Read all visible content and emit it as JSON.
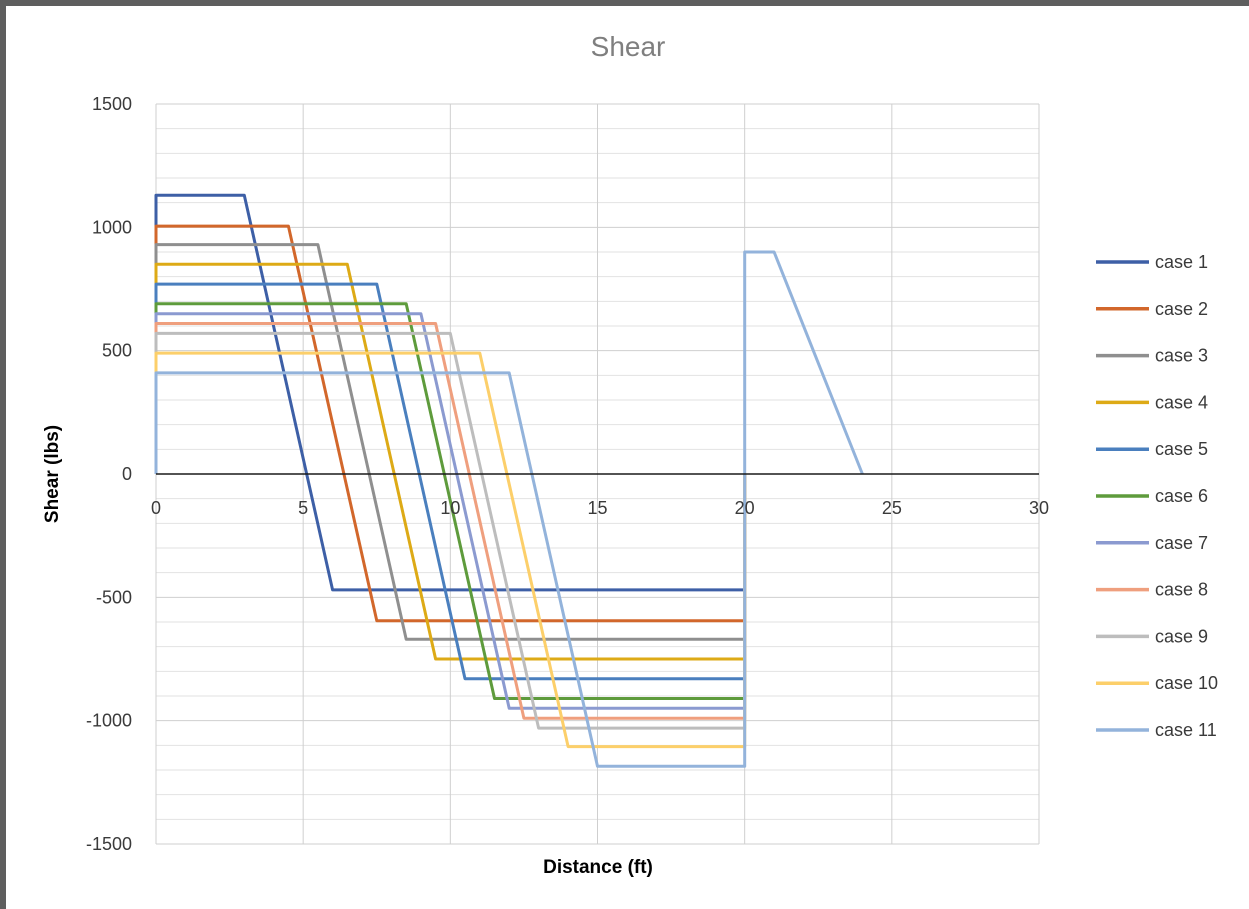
{
  "chart_data": {
    "type": "line",
    "title": "Shear",
    "xlabel": "Distance (ft)",
    "ylabel": "Shear (lbs)",
    "xlim": [
      0,
      30
    ],
    "ylim": [
      -1500,
      1500
    ],
    "x_ticks": [
      "0",
      "5",
      "10",
      "15",
      "20",
      "25",
      "30"
    ],
    "y_ticks": [
      "1500",
      "1000",
      "500",
      "0",
      "-500",
      "-1000",
      "-1500"
    ],
    "grid": true,
    "legend_position": "right",
    "series": [
      {
        "name": "case 1",
        "color": "#3d5fa6",
        "x": [
          0,
          0,
          3,
          6,
          20,
          20
        ],
        "y": [
          0,
          1130,
          1130,
          -470,
          -470,
          0
        ]
      },
      {
        "name": "case 2",
        "color": "#d2672b",
        "x": [
          0,
          0,
          4.5,
          7.5,
          20,
          20
        ],
        "y": [
          0,
          1005,
          1005,
          -595,
          -595,
          0
        ]
      },
      {
        "name": "case 3",
        "color": "#8f8f8f",
        "x": [
          0,
          0,
          5.5,
          8.5,
          20,
          20
        ],
        "y": [
          0,
          930,
          930,
          -670,
          -670,
          0
        ]
      },
      {
        "name": "case 4",
        "color": "#ddaa16",
        "x": [
          0,
          0,
          6.5,
          9.5,
          20,
          20
        ],
        "y": [
          0,
          850,
          850,
          -750,
          -750,
          0
        ]
      },
      {
        "name": "case 5",
        "color": "#4a7fbe",
        "x": [
          0,
          0,
          7.5,
          10.5,
          20,
          20
        ],
        "y": [
          0,
          770,
          770,
          -830,
          -830,
          0
        ]
      },
      {
        "name": "case 6",
        "color": "#5e9b3c",
        "x": [
          0,
          0,
          8.5,
          11.5,
          20,
          20
        ],
        "y": [
          0,
          690,
          690,
          -910,
          -910,
          0
        ]
      },
      {
        "name": "case 7",
        "color": "#8b9ad0",
        "x": [
          0,
          0,
          9,
          12,
          20,
          20
        ],
        "y": [
          0,
          650,
          650,
          -950,
          -950,
          0
        ]
      },
      {
        "name": "case 8",
        "color": "#ef9f7e",
        "x": [
          0,
          0,
          9.5,
          12.5,
          20,
          20
        ],
        "y": [
          0,
          610,
          610,
          -990,
          -990,
          0
        ]
      },
      {
        "name": "case 9",
        "color": "#bdbdbd",
        "x": [
          0,
          0,
          10,
          13,
          20,
          20
        ],
        "y": [
          0,
          570,
          570,
          -1030,
          -1030,
          0
        ]
      },
      {
        "name": "case 10",
        "color": "#fccf6a",
        "x": [
          0,
          0,
          11,
          14,
          20,
          20
        ],
        "y": [
          0,
          490,
          490,
          -1105,
          -1105,
          0
        ]
      },
      {
        "name": "case 11",
        "color": "#93b3db",
        "x": [
          0,
          0,
          12,
          15,
          20,
          20,
          21,
          24
        ],
        "y": [
          0,
          410,
          410,
          -1185,
          -1185,
          900,
          900,
          0
        ]
      }
    ]
  }
}
